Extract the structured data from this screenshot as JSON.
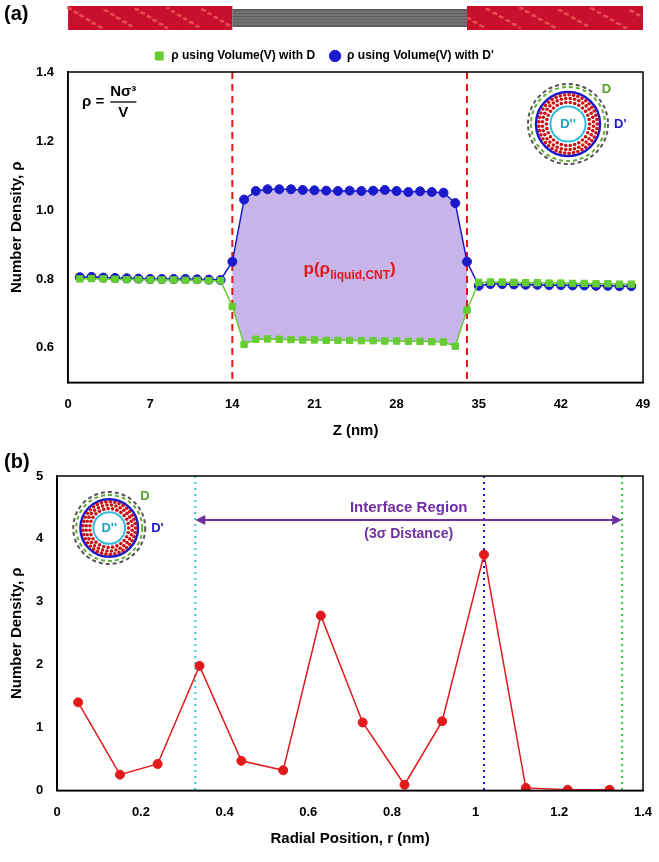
{
  "chart_data": [
    {
      "label": "(a)",
      "type": "line",
      "xlabel": "Z (nm)",
      "ylabel": "Number Density, ρ",
      "xlim": [
        0,
        49
      ],
      "xticks": [
        0,
        7,
        14,
        21,
        28,
        35,
        42,
        49
      ],
      "ylim": [
        0.5,
        1.4
      ],
      "yticks": [
        0.6,
        0.8,
        {
          "value": 1,
          "label": "1.0"
        },
        1.2,
        1.4
      ],
      "legend": "top",
      "x": [
        1,
        2,
        3,
        4,
        5,
        6,
        7,
        8,
        9,
        10,
        11,
        12,
        13,
        14,
        15,
        16,
        17,
        18,
        19,
        20,
        21,
        22,
        23,
        24,
        25,
        26,
        27,
        28,
        29,
        30,
        31,
        32,
        33,
        34,
        35,
        36,
        37,
        38,
        39,
        40,
        41,
        42,
        43,
        44,
        45,
        46,
        47,
        48
      ],
      "series": [
        {
          "name": "ρ using Volume(V) with D",
          "color": "#66cc33",
          "marker": "square",
          "values": [
            0.8,
            0.801,
            0.8,
            0.799,
            0.798,
            0.798,
            0.797,
            0.797,
            0.797,
            0.796,
            0.796,
            0.795,
            0.795,
            0.72,
            0.61,
            0.625,
            0.626,
            0.625,
            0.624,
            0.623,
            0.623,
            0.622,
            0.622,
            0.622,
            0.621,
            0.621,
            0.62,
            0.62,
            0.619,
            0.619,
            0.618,
            0.617,
            0.605,
            0.71,
            0.79,
            0.791,
            0.791,
            0.79,
            0.789,
            0.789,
            0.788,
            0.788,
            0.787,
            0.787,
            0.786,
            0.786,
            0.785,
            0.785
          ]
        },
        {
          "name": "ρ using Volume(V) with D'",
          "color": "#1a1acc",
          "marker": "circle",
          "values": [
            0.805,
            0.806,
            0.804,
            0.803,
            0.802,
            0.801,
            0.8,
            0.8,
            0.8,
            0.8,
            0.799,
            0.798,
            0.797,
            0.85,
            1.03,
            1.055,
            1.06,
            1.06,
            1.06,
            1.058,
            1.057,
            1.056,
            1.055,
            1.056,
            1.055,
            1.056,
            1.058,
            1.055,
            1.052,
            1.054,
            1.052,
            1.05,
            1.02,
            0.85,
            0.78,
            0.785,
            0.785,
            0.784,
            0.783,
            0.783,
            0.782,
            0.782,
            0.781,
            0.781,
            0.78,
            0.78,
            0.779,
            0.779
          ]
        }
      ],
      "vlines": [
        {
          "value": 14,
          "color": "#e01818",
          "line_style": "dashed"
        },
        {
          "value": 34,
          "color": "#e01818",
          "line_style": "dashed"
        }
      ],
      "shaded": {
        "from": 14,
        "to": 34,
        "color": "#b9a3e3",
        "label": {
          "text": "p(ρ",
          "subscript": "liquid,CNT",
          "tail": ")",
          "color": "#e01818"
        }
      },
      "formula": {
        "lhs": "ρ =",
        "numerator": "Nσ³",
        "denominator": "V"
      },
      "inset_labels": [
        "D",
        "D'",
        "D''"
      ]
    },
    {
      "label": "(b)",
      "type": "line",
      "xlabel": "Radial Position, r (nm)",
      "ylabel": "Number Density, ρ",
      "xlim": [
        0,
        1.4
      ],
      "xticks": [
        0,
        0.2,
        0.4,
        0.6,
        0.8,
        1,
        1.2,
        1.4
      ],
      "ylim": [
        0,
        5
      ],
      "yticks": [
        0,
        1,
        2,
        3,
        4,
        5
      ],
      "x": [
        0.05,
        0.15,
        0.24,
        0.34,
        0.44,
        0.54,
        0.63,
        0.73,
        0.83,
        0.92,
        1.02,
        1.12,
        1.22,
        1.32
      ],
      "series": [
        {
          "color": "#e31a1c",
          "marker": "circle",
          "values": [
            1.4,
            0.25,
            0.42,
            1.98,
            0.47,
            0.32,
            2.78,
            1.08,
            0.09,
            1.1,
            3.75,
            0.04,
            0.01,
            0.01
          ]
        }
      ],
      "vlines": [
        {
          "value": 0.33,
          "color": "#33cccc",
          "line_style": "dotted"
        },
        {
          "value": 1.02,
          "color": "#1a1acc",
          "line_style": "dotted"
        },
        {
          "value": 1.35,
          "color": "#33cc33",
          "line_style": "dotted"
        }
      ],
      "interval": {
        "from": 0.33,
        "to": 1.35,
        "color": "#7030a0",
        "label": [
          "Interface Region",
          "(3σ Distance)"
        ]
      },
      "inset_labels": [
        "D",
        "D'",
        "D''"
      ]
    }
  ]
}
